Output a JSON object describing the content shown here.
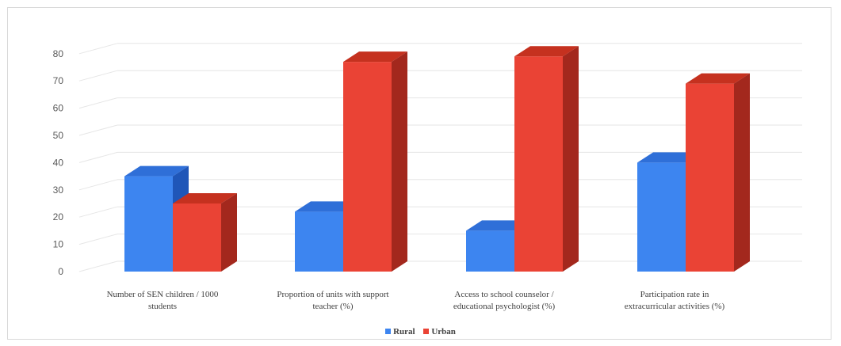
{
  "chart_data": {
    "type": "bar",
    "style": "3d-column",
    "title": "",
    "xlabel": "",
    "ylabel": "",
    "ylim": [
      0,
      80
    ],
    "yticks": [
      0,
      10,
      20,
      30,
      40,
      50,
      60,
      70,
      80
    ],
    "grid": true,
    "legend_position": "bottom",
    "categories": [
      [
        "Number of SEN children / 1000",
        "students"
      ],
      [
        "Proportion of units with support",
        "teacher (%)"
      ],
      [
        "Access to school counselor /",
        "educational psychologist (%)"
      ],
      [
        "Participation rate in",
        "extracurricular activities (%)"
      ]
    ],
    "series": [
      {
        "name": "Rural",
        "values": [
          35,
          22,
          15,
          40
        ],
        "color": "#3d85f0",
        "side_color": "#1f56b8",
        "top_color": "#2f6fd8"
      },
      {
        "name": "Urban",
        "values": [
          25,
          77,
          79,
          69
        ],
        "color": "#ea4335",
        "side_color": "#a3281d",
        "top_color": "#c5311f"
      }
    ]
  }
}
